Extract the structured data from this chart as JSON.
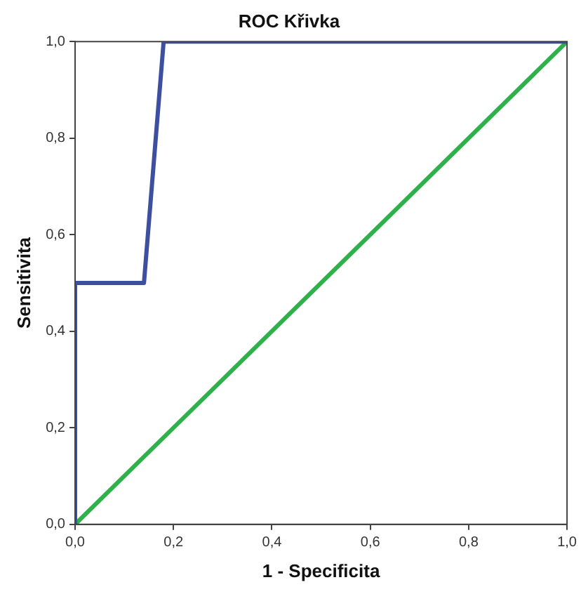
{
  "chart_data": {
    "type": "line",
    "title": "ROC Křivka",
    "xlabel": "1 - Specificita",
    "ylabel": "Sensitivita",
    "xlim": [
      0,
      1
    ],
    "ylim": [
      0,
      1
    ],
    "xticks": [
      {
        "value": 0,
        "label": "0,0"
      },
      {
        "value": 0.2,
        "label": "0,2"
      },
      {
        "value": 0.4,
        "label": "0,4"
      },
      {
        "value": 0.6,
        "label": "0,6"
      },
      {
        "value": 0.8,
        "label": "0,8"
      },
      {
        "value": 1,
        "label": "1,0"
      }
    ],
    "yticks": [
      {
        "value": 0,
        "label": "0,0"
      },
      {
        "value": 0.2,
        "label": "0,2"
      },
      {
        "value": 0.4,
        "label": "0,4"
      },
      {
        "value": 0.6,
        "label": "0,6"
      },
      {
        "value": 0.8,
        "label": "0,8"
      },
      {
        "value": 1,
        "label": "1,0"
      }
    ],
    "grid": false,
    "legend": false,
    "marker": "none",
    "line_style": "solid",
    "series": [
      {
        "color": "#3d4fa0",
        "x": [
          0,
          0,
          0.14,
          0.18,
          1
        ],
        "values": [
          0,
          0.5,
          0.5,
          1,
          1
        ]
      },
      {
        "color": "#2eb04a",
        "x": [
          0,
          1
        ],
        "values": [
          0,
          1
        ]
      }
    ]
  }
}
